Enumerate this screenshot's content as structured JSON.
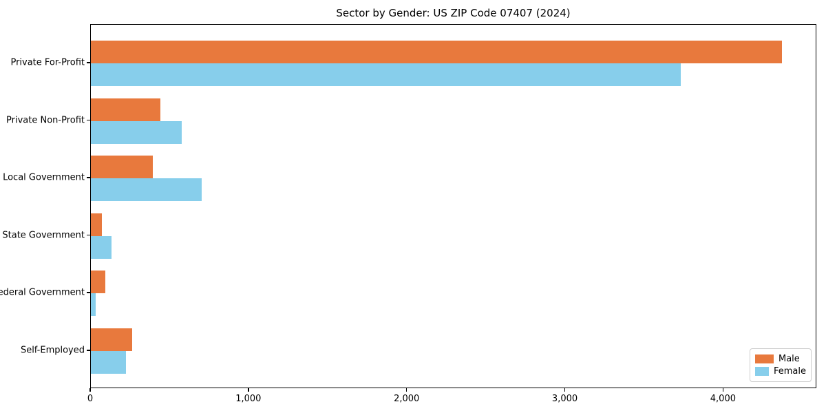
{
  "title": "Sector by Gender: US ZIP Code 07407 (2024)",
  "chart_data": {
    "type": "bar",
    "orientation": "horizontal",
    "title": "Sector by Gender: US ZIP Code 07407 (2024)",
    "categories": [
      "Private For-Profit",
      "Private Non-Profit",
      "Local Government",
      "State Government",
      "Federal Government",
      "Self-Employed"
    ],
    "series": [
      {
        "name": "Male",
        "color": "#e8793d",
        "values": [
          4370,
          440,
          390,
          70,
          90,
          260
        ]
      },
      {
        "name": "Female",
        "color": "#87ceeb",
        "values": [
          3730,
          575,
          700,
          130,
          30,
          220
        ]
      }
    ],
    "xlabel": "",
    "ylabel": "",
    "xlim": [
      0,
      4590
    ],
    "xticks": [
      {
        "value": 0,
        "label": "0"
      },
      {
        "value": 1000,
        "label": "1,000"
      },
      {
        "value": 2000,
        "label": "2,000"
      },
      {
        "value": 3000,
        "label": "3,000"
      },
      {
        "value": 4000,
        "label": "4,000"
      }
    ],
    "grid": false,
    "legend_position": "lower right"
  }
}
